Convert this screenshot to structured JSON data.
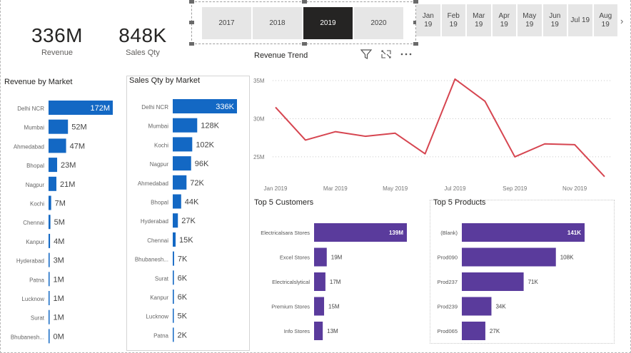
{
  "kpis": [
    {
      "value": "336M",
      "label": "Revenue"
    },
    {
      "value": "848K",
      "label": "Sales Qty"
    }
  ],
  "year_slicer": {
    "items": [
      "2017",
      "2018",
      "2019",
      "2020"
    ],
    "selected": "2019"
  },
  "month_slicer": {
    "items": [
      {
        "m": "Jan",
        "y": "19"
      },
      {
        "m": "Feb",
        "y": "19"
      },
      {
        "m": "Mar",
        "y": "19"
      },
      {
        "m": "Apr",
        "y": "19"
      },
      {
        "m": "May",
        "y": "19"
      },
      {
        "m": "Jun",
        "y": "19"
      },
      {
        "m": "Jul 19",
        "y": ""
      },
      {
        "m": "Aug",
        "y": "19"
      }
    ],
    "next_glyph": "›"
  },
  "colors": {
    "blue_bar": "#1368c4",
    "purple_bar": "#5a3b9c",
    "line": "#d64550",
    "selected_year_bg": "#252423"
  },
  "icons": [
    "filter-icon",
    "focus-mode-icon",
    "more-options-icon"
  ],
  "chart_data": [
    {
      "id": "revenue_by_market",
      "type": "bar",
      "orientation": "horizontal",
      "title": "Revenue by Market",
      "categories": [
        "Delhi NCR",
        "Mumbai",
        "Ahmedabad",
        "Bhopal",
        "Nagpur",
        "Kochi",
        "Chennai",
        "Kanpur",
        "Hyderabad",
        "Patna",
        "Lucknow",
        "Surat",
        "Bhubanesh..."
      ],
      "values": [
        172,
        52,
        47,
        23,
        21,
        7,
        5,
        4,
        3,
        1,
        1,
        1,
        0
      ],
      "labels": [
        "172M",
        "52M",
        "47M",
        "23M",
        "21M",
        "7M",
        "5M",
        "4M",
        "3M",
        "1M",
        "1M",
        "1M",
        "0M"
      ],
      "unit": "M"
    },
    {
      "id": "sales_qty_by_market",
      "type": "bar",
      "orientation": "horizontal",
      "title": "Sales Qty by Market",
      "categories": [
        "Delhi NCR",
        "Mumbai",
        "Kochi",
        "Nagpur",
        "Ahmedabad",
        "Bhopal",
        "Hyderabad",
        "Chennai",
        "Bhubanesh...",
        "Surat",
        "Kanpur",
        "Lucknow",
        "Patna"
      ],
      "values": [
        336,
        128,
        102,
        96,
        72,
        44,
        27,
        15,
        7,
        6,
        6,
        5,
        2
      ],
      "labels": [
        "336K",
        "128K",
        "102K",
        "96K",
        "72K",
        "44K",
        "27K",
        "15K",
        "7K",
        "6K",
        "6K",
        "5K",
        "2K"
      ],
      "unit": "K"
    },
    {
      "id": "revenue_trend",
      "type": "line",
      "title": "Revenue Trend",
      "x": [
        "Jan 2019",
        "Feb 2019",
        "Mar 2019",
        "Apr 2019",
        "May 2019",
        "Jun 2019",
        "Jul 2019",
        "Aug 2019",
        "Sep 2019",
        "Oct 2019",
        "Nov 2019",
        "Dec 2019"
      ],
      "y": [
        31.5,
        27.2,
        28.3,
        27.7,
        28.1,
        25.4,
        35.2,
        32.3,
        25.0,
        26.7,
        26.6,
        22.4
      ],
      "x_tick_labels": [
        "Jan 2019",
        "Mar 2019",
        "May 2019",
        "Jul 2019",
        "Sep 2019",
        "Nov 2019"
      ],
      "y_ticks": [
        25,
        30,
        35
      ],
      "y_tick_labels": [
        "25M",
        "30M",
        "35M"
      ],
      "ylim": [
        22,
        36.5
      ]
    },
    {
      "id": "top5_customers",
      "type": "bar",
      "orientation": "horizontal",
      "title": "Top 5 Customers",
      "categories": [
        "Electricalsara Stores",
        "Excel Stores",
        "Electricalslytical",
        "Premium Stores",
        "Info Stores"
      ],
      "values": [
        139,
        19,
        17,
        15,
        13
      ],
      "labels": [
        "139M",
        "19M",
        "17M",
        "15M",
        "13M"
      ],
      "unit": "M"
    },
    {
      "id": "top5_products",
      "type": "bar",
      "orientation": "horizontal",
      "title": "Top 5 Products",
      "categories": [
        "(Blank)",
        "Prod090",
        "Prod237",
        "Prod239",
        "Prod065"
      ],
      "values": [
        141,
        108,
        71,
        34,
        27
      ],
      "labels": [
        "141K",
        "108K",
        "71K",
        "34K",
        "27K"
      ],
      "unit": "K"
    }
  ]
}
